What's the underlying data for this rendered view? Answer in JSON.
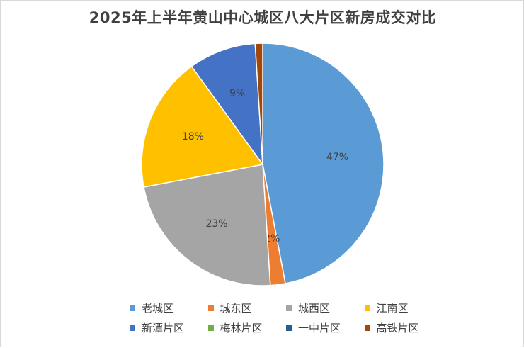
{
  "chart_data": {
    "type": "pie",
    "title": "2025年上半年黄山中心城区八大片区新房成交对比",
    "categories": [
      "老城区",
      "城东区",
      "城西区",
      "江南区",
      "新潭片区",
      "梅林片区",
      "一中片区",
      "高铁片区"
    ],
    "values": [
      47,
      2,
      23,
      18,
      9,
      0,
      0,
      1
    ],
    "labels": [
      "47%",
      "2%",
      "23%",
      "18%",
      "9%",
      "",
      "",
      ""
    ],
    "colors": [
      "#5b9bd5",
      "#ed7d31",
      "#a5a5a5",
      "#ffc000",
      "#4472c4",
      "#70ad47",
      "#255e91",
      "#9e480e"
    ],
    "legend_position": "bottom"
  }
}
